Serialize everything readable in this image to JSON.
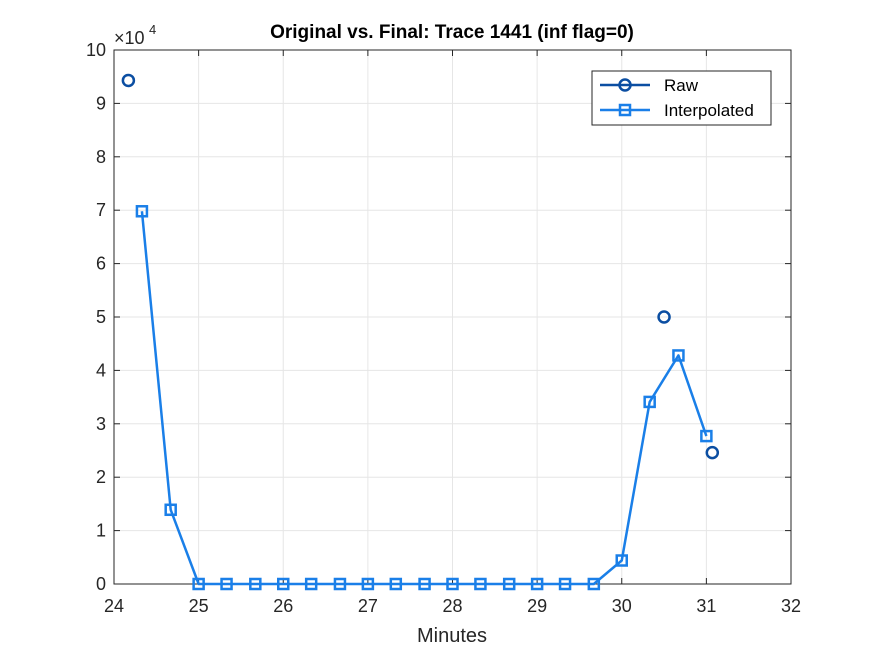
{
  "chart_data": {
    "type": "line",
    "title": "Original vs. Final: Trace 1441 (inf flag=0)",
    "xlabel": "Minutes",
    "ylabel": "",
    "xlim": [
      24,
      32
    ],
    "ylim": [
      0,
      100000
    ],
    "xticks": [
      "24",
      "25",
      "26",
      "27",
      "28",
      "29",
      "30",
      "31",
      "32"
    ],
    "yticks": [
      "0",
      "1",
      "2",
      "3",
      "4",
      "5",
      "6",
      "7",
      "8",
      "9",
      "10"
    ],
    "y_exponent_label": "×10",
    "y_exponent_power": "4",
    "grid": true,
    "legend_position": "top-right",
    "series": [
      {
        "name": "Raw",
        "marker": "circle",
        "line": false,
        "color": "#0b4ea2",
        "points": [
          {
            "x": 24.17,
            "y": 94300
          },
          {
            "x": 30.5,
            "y": 50000
          },
          {
            "x": 31.07,
            "y": 24600
          }
        ]
      },
      {
        "name": "Interpolated",
        "marker": "square",
        "line": true,
        "color": "#1a7fe8",
        "points": [
          {
            "x": 24.33,
            "y": 69800
          },
          {
            "x": 24.67,
            "y": 13900
          },
          {
            "x": 25.0,
            "y": 0
          },
          {
            "x": 25.33,
            "y": 0
          },
          {
            "x": 25.67,
            "y": 0
          },
          {
            "x": 26.0,
            "y": 0
          },
          {
            "x": 26.33,
            "y": 0
          },
          {
            "x": 26.67,
            "y": 0
          },
          {
            "x": 27.0,
            "y": 0
          },
          {
            "x": 27.33,
            "y": 0
          },
          {
            "x": 27.67,
            "y": 0
          },
          {
            "x": 28.0,
            "y": 0
          },
          {
            "x": 28.33,
            "y": 0
          },
          {
            "x": 28.67,
            "y": 0
          },
          {
            "x": 29.0,
            "y": 0
          },
          {
            "x": 29.33,
            "y": 0
          },
          {
            "x": 29.67,
            "y": 0
          },
          {
            "x": 30.0,
            "y": 4400
          },
          {
            "x": 30.33,
            "y": 34100
          },
          {
            "x": 30.67,
            "y": 42800
          },
          {
            "x": 31.0,
            "y": 27700
          }
        ]
      }
    ]
  }
}
